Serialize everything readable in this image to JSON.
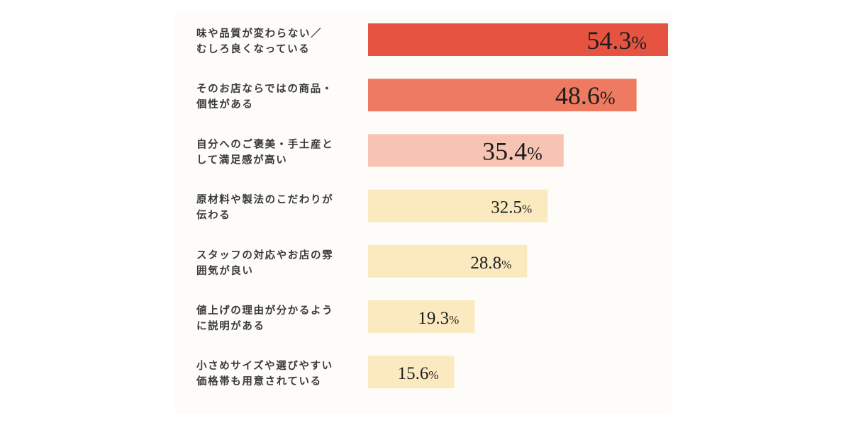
{
  "chart_data": {
    "type": "bar",
    "orientation": "horizontal",
    "categories": [
      [
        "味や品質が変わらない／",
        "むしろ良くなっている"
      ],
      [
        "そのお店ならではの商品・",
        "個性がある"
      ],
      [
        "自分へのご褒美・手土産と",
        "して満足感が高い"
      ],
      [
        "原材料や製法のこだわりが",
        "伝わる"
      ],
      [
        "スタッフの対応やお店の雰",
        "囲気が良い"
      ],
      [
        "値上げの理由が分かるよう",
        "に説明がある"
      ],
      [
        "小さめサイズや選びやすい",
        "価格帯も用意されている"
      ]
    ],
    "values": [
      54.3,
      48.6,
      35.4,
      32.5,
      28.8,
      19.3,
      15.6
    ],
    "value_labels": [
      "54.3%",
      "48.6%",
      "35.4%",
      "32.5%",
      "28.8%",
      "19.3%",
      "15.6%"
    ],
    "bar_colors": [
      "#e65441",
      "#ee7a62",
      "#f7c3b2",
      "#fbeac0",
      "#fbeac0",
      "#fbeac0",
      "#fbeac0"
    ],
    "xlim": [
      0,
      54.3
    ],
    "grid": false,
    "legend": "none"
  }
}
